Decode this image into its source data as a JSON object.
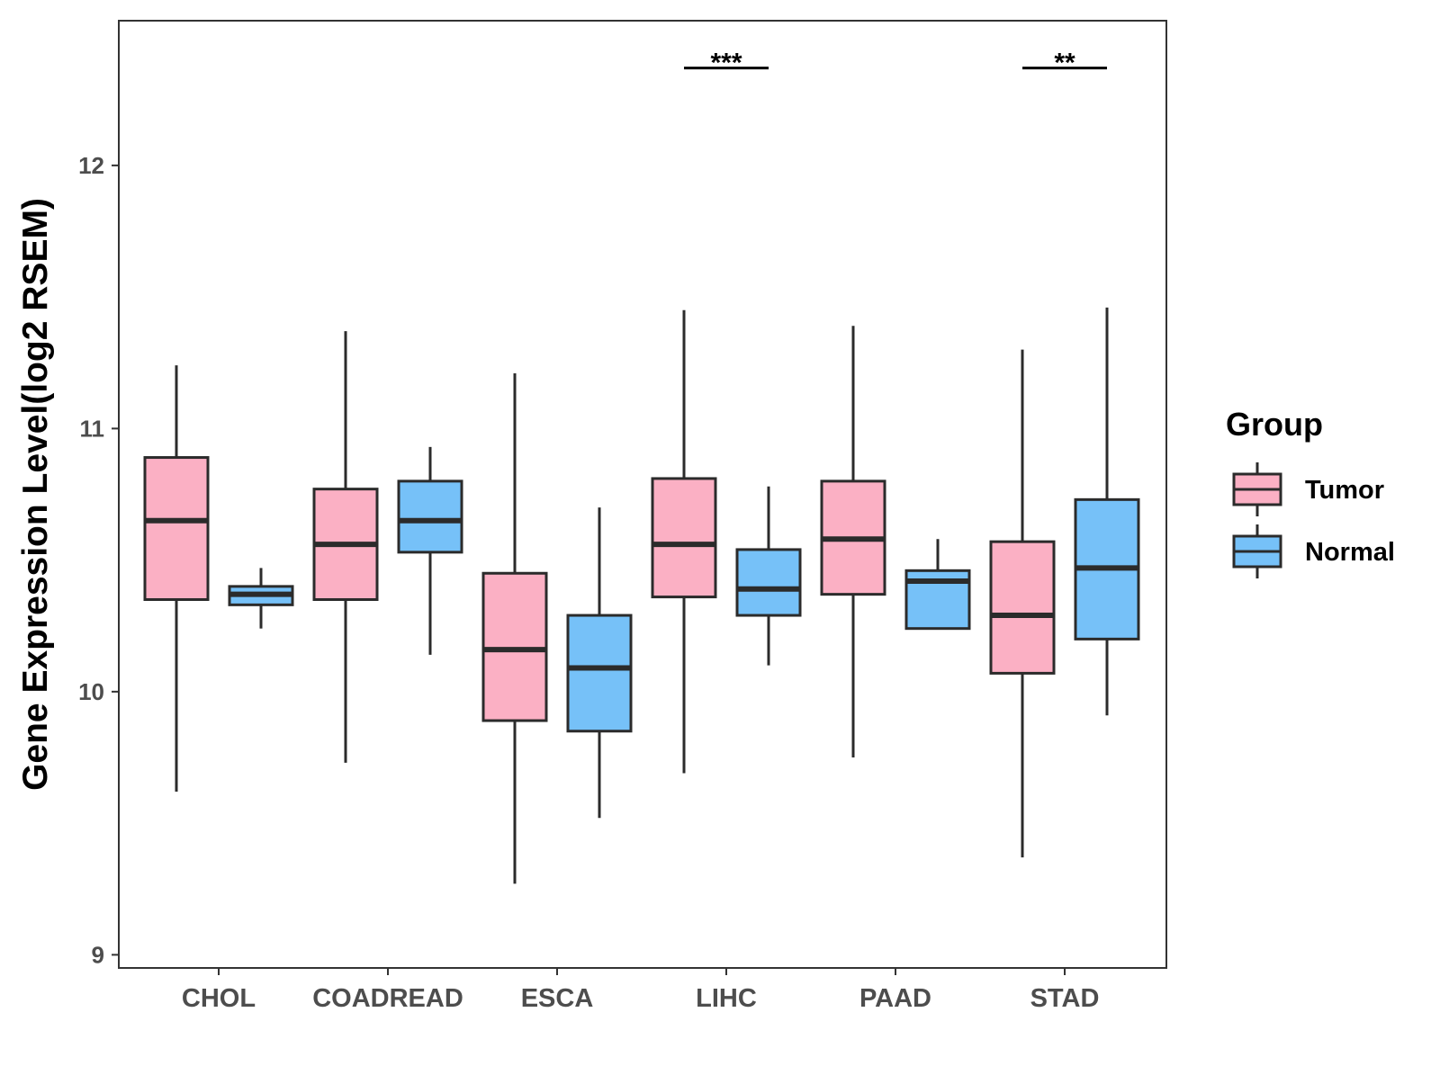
{
  "chart_data": {
    "type": "boxplot",
    "title": "",
    "xlabel": "",
    "ylabel": "Gene Expression Level(log2 RSEM)",
    "ylim": [
      8.95,
      12.55
    ],
    "yticks": [
      9,
      10,
      11,
      12
    ],
    "categories": [
      "CHOL",
      "COADREAD",
      "ESCA",
      "LIHC",
      "PAAD",
      "STAD"
    ],
    "legend": {
      "title": "Group",
      "position": "right"
    },
    "series": [
      {
        "name": "Tumor",
        "color": "#fbb0c4",
        "boxes": [
          {
            "category": "CHOL",
            "whisker_low": 9.62,
            "q1": 10.35,
            "median": 10.65,
            "q3": 10.89,
            "whisker_high": 11.24
          },
          {
            "category": "COADREAD",
            "whisker_low": 9.73,
            "q1": 10.35,
            "median": 10.56,
            "q3": 10.77,
            "whisker_high": 11.37
          },
          {
            "category": "ESCA",
            "whisker_low": 9.27,
            "q1": 9.89,
            "median": 10.16,
            "q3": 10.45,
            "whisker_high": 11.21
          },
          {
            "category": "LIHC",
            "whisker_low": 9.69,
            "q1": 10.36,
            "median": 10.56,
            "q3": 10.81,
            "whisker_high": 11.45
          },
          {
            "category": "PAAD",
            "whisker_low": 9.75,
            "q1": 10.37,
            "median": 10.58,
            "q3": 10.8,
            "whisker_high": 11.39
          },
          {
            "category": "STAD",
            "whisker_low": 9.37,
            "q1": 10.07,
            "median": 10.29,
            "q3": 10.57,
            "whisker_high": 11.3
          }
        ]
      },
      {
        "name": "Normal",
        "color": "#76c1f8",
        "boxes": [
          {
            "category": "CHOL",
            "whisker_low": 10.24,
            "q1": 10.33,
            "median": 10.37,
            "q3": 10.4,
            "whisker_high": 10.47
          },
          {
            "category": "COADREAD",
            "whisker_low": 10.14,
            "q1": 10.53,
            "median": 10.65,
            "q3": 10.8,
            "whisker_high": 10.93
          },
          {
            "category": "ESCA",
            "whisker_low": 9.52,
            "q1": 9.85,
            "median": 10.09,
            "q3": 10.29,
            "whisker_high": 10.7
          },
          {
            "category": "LIHC",
            "whisker_low": 10.1,
            "q1": 10.29,
            "median": 10.39,
            "q3": 10.54,
            "whisker_high": 10.78
          },
          {
            "category": "PAAD",
            "whisker_low": 10.24,
            "q1": 10.24,
            "median": 10.42,
            "q3": 10.46,
            "whisker_high": 10.58
          },
          {
            "category": "STAD",
            "whisker_low": 9.91,
            "q1": 10.2,
            "median": 10.47,
            "q3": 10.73,
            "whisker_high": 11.46
          }
        ]
      }
    ],
    "annotations": [
      {
        "category": "LIHC",
        "label": "***",
        "y": 12.37
      },
      {
        "category": "STAD",
        "label": "**",
        "y": 12.37
      }
    ]
  }
}
